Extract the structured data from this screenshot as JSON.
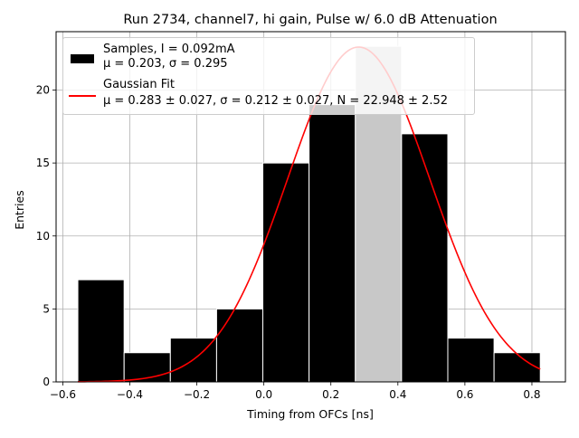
{
  "chart_data": {
    "type": "bar",
    "title": "Run 2734, channel7, hi gain, Pulse w/ 6.0 dB Attenuation",
    "xlabel": "Timing from OFCs [ns]",
    "ylabel": "Entries",
    "xlim": [
      -0.62,
      0.9
    ],
    "ylim": [
      0,
      24
    ],
    "grid": true,
    "x_ticks": [
      -0.6,
      -0.4,
      -0.2,
      0.0,
      0.2,
      0.4,
      0.6,
      0.8
    ],
    "x_tick_labels": [
      "−0.6",
      "−0.4",
      "−0.2",
      "0.0",
      "0.2",
      "0.4",
      "0.6",
      "0.8"
    ],
    "y_ticks": [
      0,
      5,
      10,
      15,
      20
    ],
    "y_tick_labels": [
      "0",
      "5",
      "10",
      "15",
      "20"
    ],
    "bin_edges": [
      -0.555,
      -0.417,
      -0.279,
      -0.141,
      -0.003,
      0.135,
      0.273,
      0.411,
      0.549,
      0.687,
      0.825
    ],
    "series": [
      {
        "name": "Samples, I = 0.092mA",
        "stats": "μ = 0.203, σ = 0.295",
        "kind": "histogram",
        "values": [
          7,
          2,
          3,
          5,
          15,
          19,
          23,
          17,
          3,
          2
        ],
        "color": "#000000",
        "highlight_color": "#c8c8c8"
      },
      {
        "name": "Gaussian Fit",
        "stats": "μ = 0.283 ± 0.027, σ = 0.212 ± 0.027, N = 22.948 ± 2.52",
        "kind": "curve",
        "mu": 0.283,
        "sigma": 0.212,
        "amplitude": 22.948,
        "x_range": [
          -0.555,
          0.825
        ],
        "color": "#ff0000"
      }
    ],
    "legend_position": "top-left"
  },
  "legend": {
    "samples_label": "Samples, I = 0.092mA",
    "samples_stats": "μ = 0.203, σ = 0.295",
    "fit_label": "Gaussian Fit",
    "fit_stats": "μ = 0.283 ± 0.027, σ = 0.212 ± 0.027, N = 22.948 ± 2.52"
  }
}
